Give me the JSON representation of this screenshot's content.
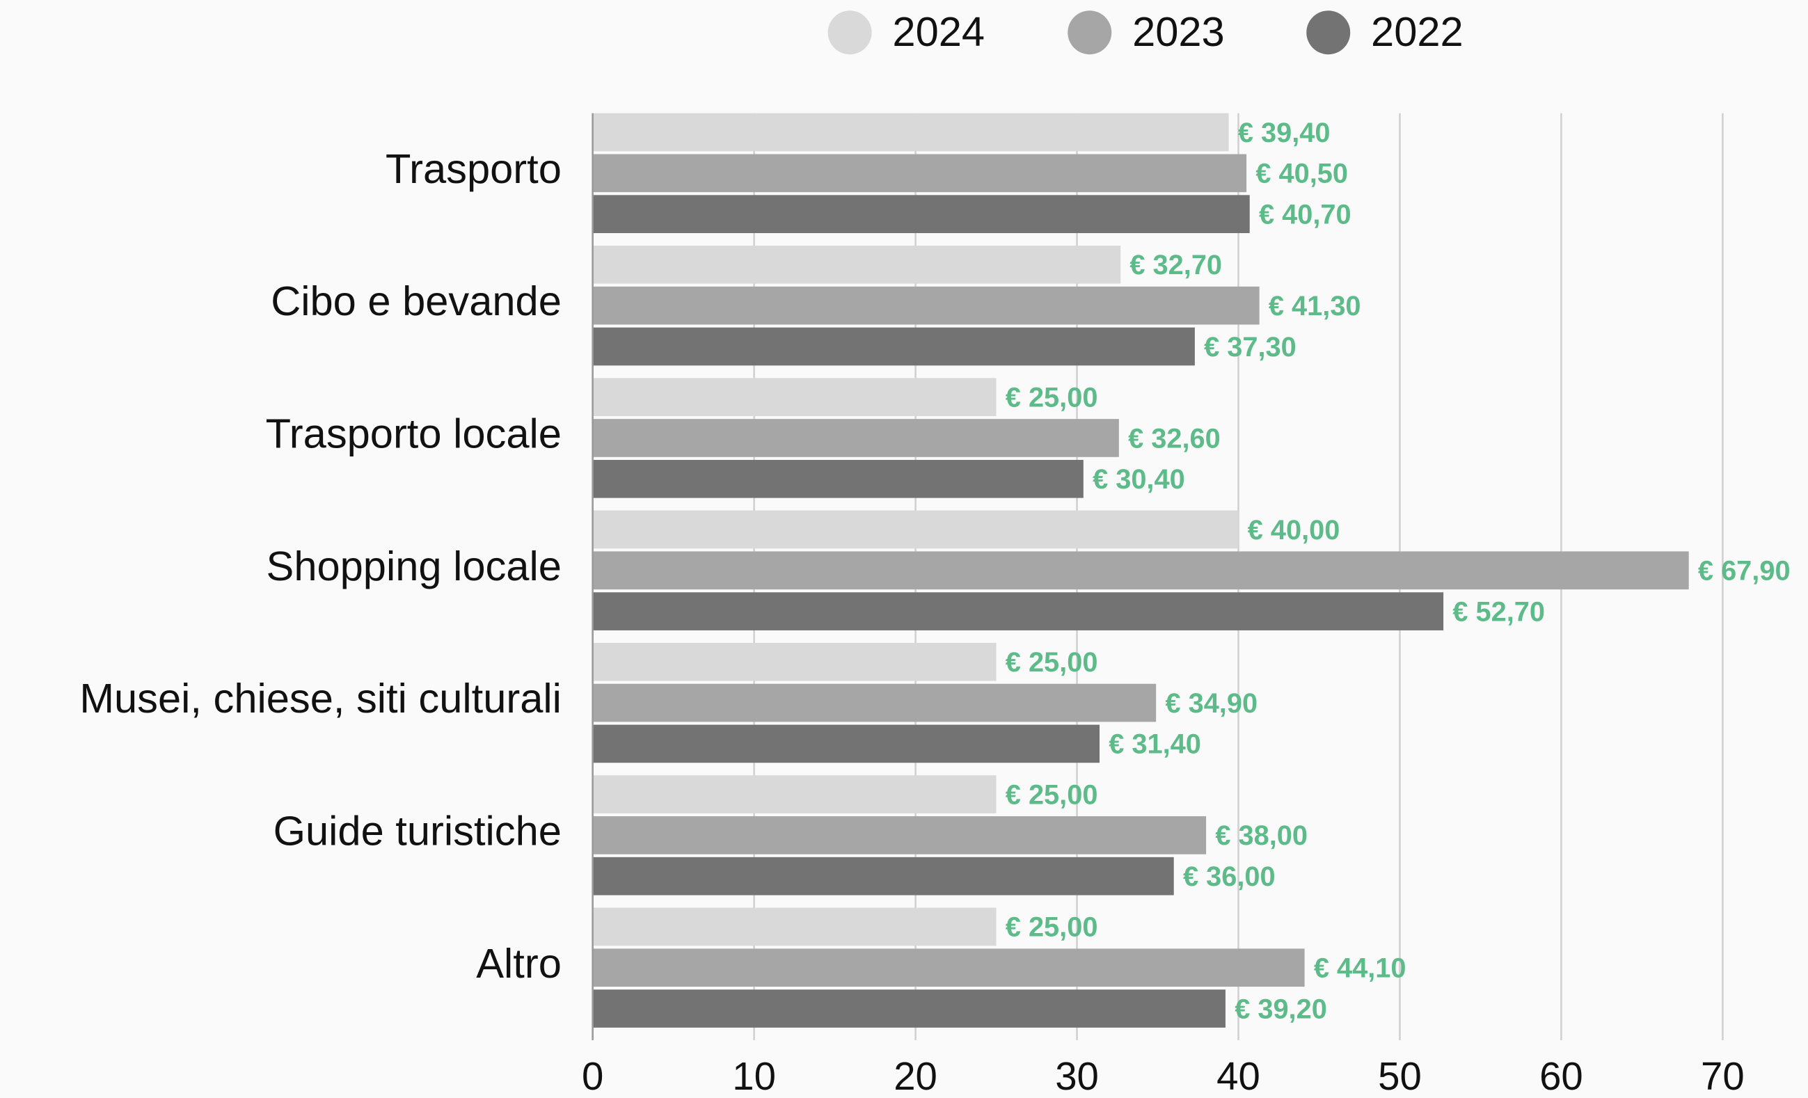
{
  "chart_data": {
    "type": "bar",
    "orientation": "horizontal",
    "categories": [
      "Trasporto",
      "Cibo e bevande",
      "Trasporto locale",
      "Shopping locale",
      "Musei, chiese, siti culturali",
      "Guide turistiche",
      "Altro"
    ],
    "series": [
      {
        "name": "2024",
        "color": "#d9d9d9",
        "values": [
          39.4,
          32.7,
          25,
          40,
          25,
          25,
          25
        ],
        "value_labels": [
          "€ 39,40",
          "€ 32,70",
          "€ 25,00",
          "€ 40,00",
          "€ 25,00",
          "€ 25,00",
          "€ 25,00"
        ]
      },
      {
        "name": "2023",
        "color": "#a6a6a6",
        "values": [
          40.5,
          41.3,
          32.6,
          67.9,
          34.9,
          38,
          44.1
        ],
        "value_labels": [
          "€ 40,50",
          "€ 41,30",
          "€ 32,60",
          "€ 67,90",
          "€ 34,90",
          "€ 38,00",
          "€ 44,10"
        ]
      },
      {
        "name": "2022",
        "color": "#737373",
        "values": [
          40.7,
          37.3,
          30.4,
          52.7,
          31.4,
          36,
          39.2
        ],
        "value_labels": [
          "€ 40,70",
          "€ 37,30",
          "€ 30,40",
          "€ 52,70",
          "€ 31,40",
          "€ 36,00",
          "€ 39,20"
        ]
      }
    ],
    "xlim": [
      0,
      70
    ],
    "xticks": [
      0,
      10,
      20,
      30,
      40,
      50,
      60,
      70
    ],
    "grid": true,
    "legend": "top"
  }
}
